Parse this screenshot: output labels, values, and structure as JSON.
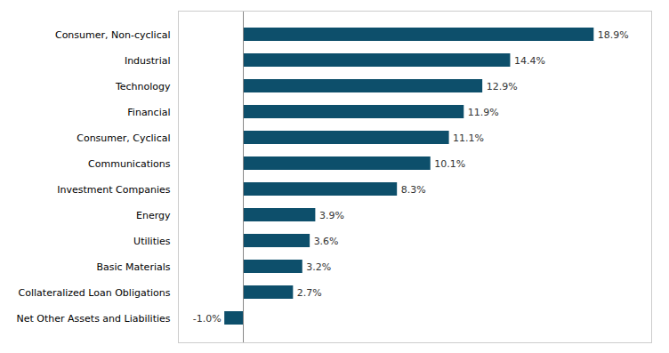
{
  "chart_data": {
    "type": "bar",
    "orientation": "horizontal",
    "categories": [
      "Consumer, Non-cyclical",
      "Industrial",
      "Technology",
      "Financial",
      "Consumer, Cyclical",
      "Communications",
      "Investment Companies",
      "Energy",
      "Utilities",
      "Basic Materials",
      "Collateralized Loan Obligations",
      "Net Other Assets and Liabilities"
    ],
    "values": [
      18.9,
      14.4,
      12.9,
      11.9,
      11.1,
      10.1,
      8.3,
      3.9,
      3.6,
      3.2,
      2.7,
      -1.0
    ],
    "value_labels": [
      "18.9%",
      "14.4%",
      "12.9%",
      "11.9%",
      "11.1%",
      "10.1%",
      "8.3%",
      "3.9%",
      "3.6%",
      "3.2%",
      "2.7%",
      "-1.0%"
    ],
    "color": "#0d4f6b",
    "xlim": [
      -3.5,
      22
    ],
    "xticks": [],
    "data_labels": true,
    "tick_labels": "y",
    "grid": false
  }
}
